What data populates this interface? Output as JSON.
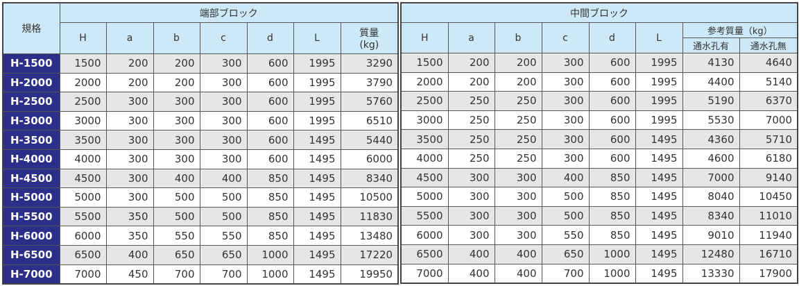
{
  "spec_header": "規格",
  "end_block": {
    "title": "端部ブロック",
    "columns": [
      "H",
      "a",
      "b",
      "c",
      "d",
      "L"
    ],
    "mass_label": "質量",
    "mass_unit": "(kg)"
  },
  "middle_block": {
    "title": "中間ブロック",
    "columns": [
      "H",
      "a",
      "b",
      "c",
      "d",
      "L"
    ],
    "mass_label": "参考質量（kg）",
    "mass_sub": [
      "通水孔有",
      "通水孔無"
    ]
  },
  "rows": [
    {
      "spec": "H-1500",
      "end": [
        "1500",
        "200",
        "200",
        "300",
        "600",
        "1995",
        "3290"
      ],
      "mid": [
        "1500",
        "200",
        "200",
        "300",
        "600",
        "1995",
        "4130",
        "4640"
      ]
    },
    {
      "spec": "H-2000",
      "end": [
        "2000",
        "200",
        "200",
        "300",
        "600",
        "1995",
        "3790"
      ],
      "mid": [
        "2000",
        "200",
        "200",
        "300",
        "600",
        "1995",
        "4400",
        "5140"
      ]
    },
    {
      "spec": "H-2500",
      "end": [
        "2500",
        "300",
        "300",
        "300",
        "600",
        "1995",
        "5760"
      ],
      "mid": [
        "2500",
        "250",
        "250",
        "300",
        "600",
        "1995",
        "5190",
        "6370"
      ]
    },
    {
      "spec": "H-3000",
      "end": [
        "3000",
        "300",
        "300",
        "300",
        "600",
        "1995",
        "6510"
      ],
      "mid": [
        "3000",
        "250",
        "250",
        "300",
        "600",
        "1995",
        "5530",
        "7000"
      ]
    },
    {
      "spec": "H-3500",
      "end": [
        "3500",
        "300",
        "300",
        "300",
        "600",
        "1495",
        "5440"
      ],
      "mid": [
        "3500",
        "250",
        "250",
        "300",
        "600",
        "1495",
        "4360",
        "5710"
      ]
    },
    {
      "spec": "H-4000",
      "end": [
        "4000",
        "300",
        "300",
        "300",
        "600",
        "1495",
        "6000"
      ],
      "mid": [
        "4000",
        "250",
        "250",
        "300",
        "600",
        "1495",
        "4600",
        "6180"
      ]
    },
    {
      "spec": "H-4500",
      "end": [
        "4500",
        "300",
        "400",
        "400",
        "850",
        "1495",
        "8340"
      ],
      "mid": [
        "4500",
        "300",
        "300",
        "400",
        "850",
        "1495",
        "7000",
        "9140"
      ]
    },
    {
      "spec": "H-5000",
      "end": [
        "5000",
        "300",
        "500",
        "500",
        "850",
        "1495",
        "10500"
      ],
      "mid": [
        "5000",
        "300",
        "300",
        "500",
        "850",
        "1495",
        "8040",
        "10450"
      ]
    },
    {
      "spec": "H-5500",
      "end": [
        "5500",
        "350",
        "500",
        "500",
        "850",
        "1495",
        "11830"
      ],
      "mid": [
        "5500",
        "300",
        "300",
        "500",
        "850",
        "1495",
        "8340",
        "11010"
      ]
    },
    {
      "spec": "H-6000",
      "end": [
        "6000",
        "350",
        "550",
        "550",
        "850",
        "1495",
        "13480"
      ],
      "mid": [
        "6000",
        "300",
        "300",
        "550",
        "850",
        "1495",
        "9010",
        "11940"
      ]
    },
    {
      "spec": "H-6500",
      "end": [
        "6500",
        "400",
        "650",
        "650",
        "1000",
        "1495",
        "17220"
      ],
      "mid": [
        "6500",
        "400",
        "400",
        "650",
        "1000",
        "1495",
        "12480",
        "16710"
      ]
    },
    {
      "spec": "H-7000",
      "end": [
        "7000",
        "450",
        "700",
        "700",
        "1000",
        "1495",
        "19950"
      ],
      "mid": [
        "7000",
        "400",
        "400",
        "700",
        "1000",
        "1495",
        "13330",
        "17900"
      ]
    }
  ]
}
